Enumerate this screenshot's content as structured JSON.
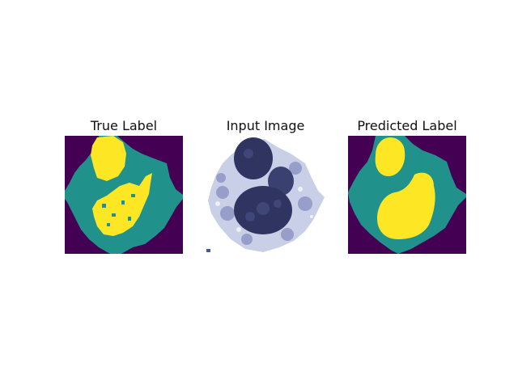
{
  "figure": {
    "panels": [
      {
        "title": "True Label",
        "icon": "segmentation-mask-image"
      },
      {
        "title": "Input Image",
        "icon": "cell-microscopy-image"
      },
      {
        "title": "Predicted Label",
        "icon": "segmentation-mask-image"
      }
    ]
  },
  "colors": {
    "background": "#440154",
    "cytoplasm": "#21918c",
    "nucleus": "#fde725",
    "stain_dark": "#2f3560",
    "stain_light": "#aab3d6"
  }
}
